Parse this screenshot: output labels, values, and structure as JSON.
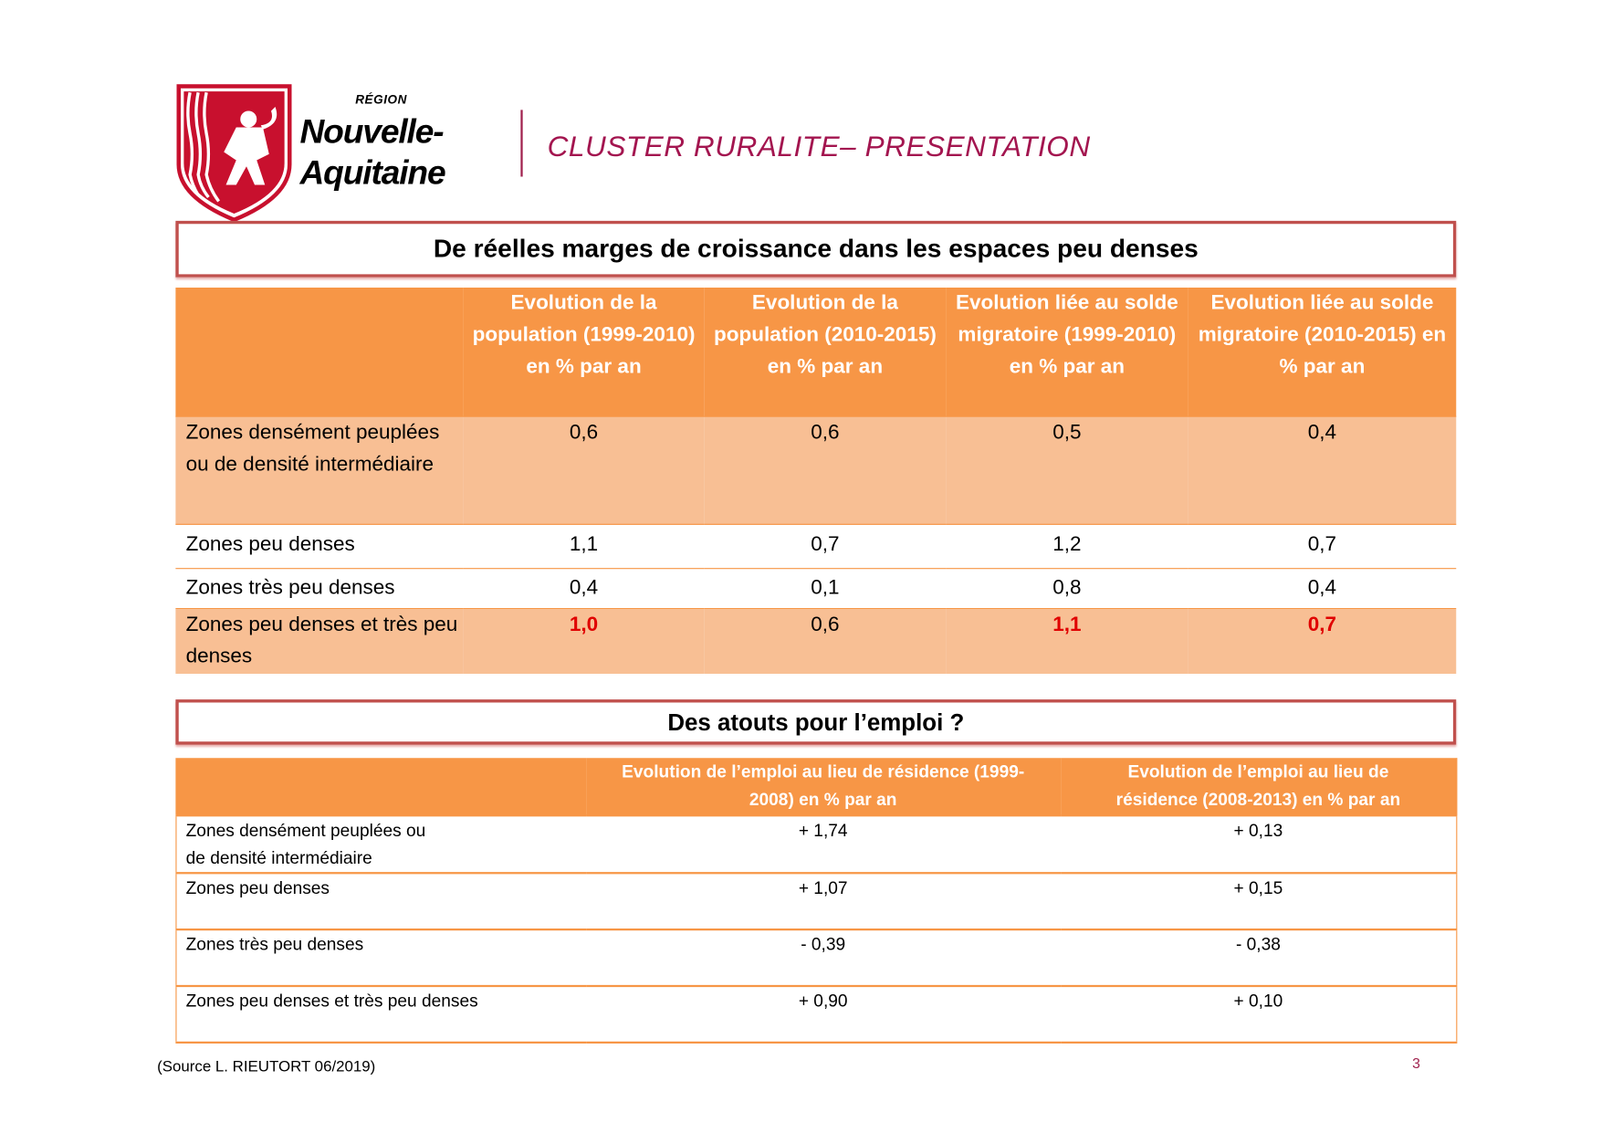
{
  "header": {
    "logo": {
      "region": "RÉGION",
      "name_line1": "Nouvelle-",
      "name_line2": "Aquitaine"
    },
    "title": "CLUSTER RURALITE– PRESENTATION"
  },
  "section1": {
    "title": "De réelles marges de croissance dans les espaces peu denses",
    "columns": [
      "",
      "Evolution de la population (1999-2010) en % par an",
      "Evolution de la population (2010-2015) en % par an",
      "Evolution liée au solde migratoire (1999-2010) en % par an",
      "Evolution liée au solde migratoire (2010-2015) en % par an"
    ],
    "rows": [
      {
        "label": "Zones densément peuplées ou de densité intermédiaire",
        "values": [
          "0,6",
          "0,6",
          "0,5",
          "0,4"
        ]
      },
      {
        "label": "Zones peu denses",
        "values": [
          "1,1",
          "0,7",
          "1,2",
          "0,7"
        ]
      },
      {
        "label": "Zones très peu denses",
        "values": [
          "0,4",
          "0,1",
          "0,8",
          "0,4"
        ]
      },
      {
        "label": "Zones peu denses et très peu denses",
        "values": [
          "1,0",
          "0,6",
          "1,1",
          "0,7"
        ]
      }
    ]
  },
  "section2": {
    "title": "Des atouts pour l’emploi ?",
    "columns": [
      "",
      "Evolution de l’emploi au lieu de résidence (1999-2008) en % par an",
      "Evolution de l’emploi au lieu de résidence (2008-2013) en % par an"
    ],
    "rows": [
      {
        "label": "Zones densément peuplées ou de densité intermédiaire",
        "values": [
          "+ 1,74",
          "+ 0,13"
        ]
      },
      {
        "label": "Zones peu denses",
        "values": [
          "+ 1,07",
          "+ 0,15"
        ]
      },
      {
        "label": "Zones très peu denses",
        "values": [
          "- 0,39",
          "- 0,38"
        ]
      },
      {
        "label": "Zones peu denses et très peu denses",
        "values": [
          "+ 0,90",
          "+ 0,10"
        ]
      }
    ]
  },
  "footer": {
    "source": "(Source L. RIEUTORT 06/2019)",
    "page_number": "3"
  },
  "colors": {
    "accent": "#a3154f",
    "header_orange": "#f79646",
    "shade": "#f8bf94",
    "box_border": "#c0504d",
    "highlight": "#e00000"
  }
}
